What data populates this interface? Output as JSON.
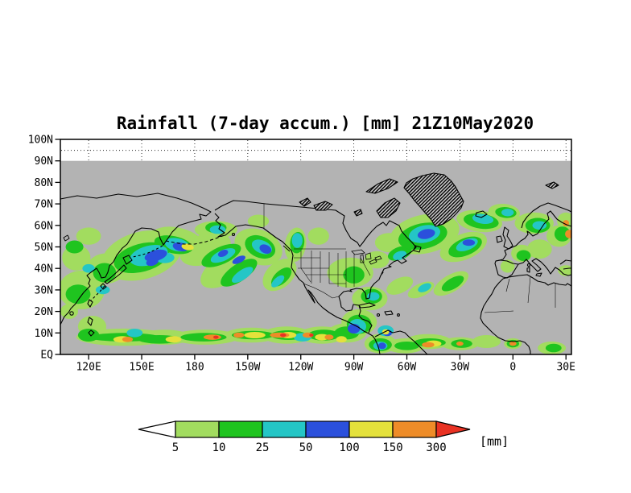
{
  "chart_data": {
    "type": "heatmap",
    "title": "Rainfall (7-day accum.) [mm] 21Z10May2020",
    "variable": "Rainfall (7-day accumulation)",
    "units": "mm",
    "valid_time": "21Z10May2020",
    "projection": "latlon",
    "map_background_color": "#b3b3b3",
    "axes": {
      "lat_ticks": [
        {
          "value": 100,
          "label": "100N"
        },
        {
          "value": 90,
          "label": "90N"
        },
        {
          "value": 80,
          "label": "80N"
        },
        {
          "value": 70,
          "label": "70N"
        },
        {
          "value": 60,
          "label": "60N"
        },
        {
          "value": 50,
          "label": "50N"
        },
        {
          "value": 40,
          "label": "40N"
        },
        {
          "value": 30,
          "label": "30N"
        },
        {
          "value": 20,
          "label": "20N"
        },
        {
          "value": 10,
          "label": "10N"
        },
        {
          "value": 0,
          "label": "EQ"
        }
      ],
      "lon_ticks": [
        {
          "value": 120,
          "label": "120E"
        },
        {
          "value": 150,
          "label": "150E"
        },
        {
          "value": 180,
          "label": "180"
        },
        {
          "value": 210,
          "label": "150W"
        },
        {
          "value": 240,
          "label": "120W"
        },
        {
          "value": 270,
          "label": "90W"
        },
        {
          "value": 300,
          "label": "60W"
        },
        {
          "value": 330,
          "label": "30W"
        },
        {
          "value": 360,
          "label": "0"
        },
        {
          "value": 390,
          "label": "30E"
        }
      ]
    },
    "colorbar": {
      "levels": [
        "5",
        "10",
        "25",
        "50",
        "100",
        "150",
        "300"
      ],
      "unit_label": "[mm]",
      "segments": [
        {
          "range": "<5",
          "color": "#ffffff"
        },
        {
          "range": "5-10",
          "color": "#a2dc5f"
        },
        {
          "range": "10-25",
          "color": "#1fc41f"
        },
        {
          "range": "25-50",
          "color": "#24c6c6"
        },
        {
          "range": "50-100",
          "color": "#2b50dc"
        },
        {
          "range": "100-150",
          "color": "#e4e13b"
        },
        {
          "range": "150-300",
          "color": "#ee8c28"
        },
        {
          "range": ">300",
          "color": "#e93223"
        }
      ]
    },
    "palette": {
      "a": "#a2dc5f",
      "g": "#1fc41f",
      "c": "#24c6c6",
      "b": "#2b50dc",
      "y": "#e4e13b",
      "o": "#ee8c28",
      "r": "#e93223"
    },
    "rain_patch_format": [
      "lon_deg_east_0_360_continuous",
      "lat_deg_north",
      "width_deg",
      "height_deg",
      "rotation_deg",
      "intensity_key"
    ],
    "rain_patches": [
      [
        116,
        30,
        26,
        18,
        0,
        "a"
      ],
      [
        113,
        45,
        16,
        12,
        0,
        "a"
      ],
      [
        130,
        40,
        22,
        14,
        0,
        "a"
      ],
      [
        150,
        46,
        46,
        22,
        -15,
        "a"
      ],
      [
        170,
        53,
        30,
        12,
        12,
        "a"
      ],
      [
        186,
        49,
        30,
        14,
        -20,
        "a"
      ],
      [
        200,
        41,
        38,
        14,
        -32,
        "a"
      ],
      [
        216,
        50,
        28,
        16,
        22,
        "a"
      ],
      [
        228,
        37,
        22,
        12,
        -42,
        "a"
      ],
      [
        237,
        51,
        12,
        16,
        8,
        "a"
      ],
      [
        216,
        62,
        12,
        6,
        0,
        "a"
      ],
      [
        192,
        58,
        24,
        8,
        0,
        "a"
      ],
      [
        140,
        8,
        54,
        8,
        0,
        "a"
      ],
      [
        122,
        13,
        16,
        10,
        0,
        "a"
      ],
      [
        163,
        8,
        30,
        7,
        0,
        "a"
      ],
      [
        186,
        8,
        38,
        7,
        0,
        "a"
      ],
      [
        212,
        9,
        30,
        7,
        0,
        "a"
      ],
      [
        232,
        9,
        28,
        8,
        0,
        "a"
      ],
      [
        252,
        9,
        26,
        8,
        0,
        "a"
      ],
      [
        266,
        10,
        22,
        9,
        0,
        "a"
      ],
      [
        273,
        15,
        20,
        12,
        0,
        "a"
      ],
      [
        285,
        5,
        18,
        9,
        0,
        "a"
      ],
      [
        299,
        4,
        22,
        7,
        0,
        "a"
      ],
      [
        312,
        6,
        26,
        7,
        0,
        "a"
      ],
      [
        330,
        5,
        22,
        6,
        0,
        "a"
      ],
      [
        345,
        6,
        16,
        6,
        0,
        "a"
      ],
      [
        360,
        5,
        10,
        5,
        0,
        "a"
      ],
      [
        382,
        3,
        16,
        6,
        0,
        "a"
      ],
      [
        279,
        26,
        20,
        11,
        0,
        "a"
      ],
      [
        268,
        38,
        26,
        14,
        0,
        "a"
      ],
      [
        283,
        44,
        14,
        8,
        0,
        "a"
      ],
      [
        290,
        52,
        16,
        9,
        0,
        "a"
      ],
      [
        250,
        55,
        12,
        8,
        0,
        "a"
      ],
      [
        296,
        32,
        16,
        7,
        -25,
        "a"
      ],
      [
        308,
        30,
        16,
        6,
        -25,
        "a"
      ],
      [
        325,
        33,
        22,
        8,
        -30,
        "a"
      ],
      [
        310,
        56,
        40,
        18,
        -12,
        "a"
      ],
      [
        332,
        50,
        28,
        12,
        -22,
        "a"
      ],
      [
        341,
        62,
        26,
        10,
        8,
        "a"
      ],
      [
        355,
        66,
        18,
        8,
        5,
        "a"
      ],
      [
        372,
        61,
        22,
        10,
        0,
        "a"
      ],
      [
        386,
        55,
        14,
        10,
        0,
        "a"
      ],
      [
        390,
        62,
        10,
        8,
        0,
        "a"
      ],
      [
        365,
        47,
        12,
        8,
        0,
        "a"
      ],
      [
        357,
        41,
        8,
        6,
        0,
        "a"
      ],
      [
        375,
        49,
        14,
        9,
        0,
        "a"
      ],
      [
        390,
        39,
        9,
        5,
        0,
        "a"
      ],
      [
        120,
        55,
        14,
        8,
        0,
        "a"
      ],
      [
        109,
        20,
        10,
        7,
        0,
        "a"
      ],
      [
        114,
        28,
        14,
        9,
        0,
        "g"
      ],
      [
        129,
        38,
        13,
        9,
        0,
        "g"
      ],
      [
        150,
        45,
        32,
        13,
        -15,
        "g"
      ],
      [
        168,
        51,
        22,
        8,
        12,
        "g"
      ],
      [
        195,
        46,
        24,
        8,
        -24,
        "g"
      ],
      [
        205,
        38,
        24,
        8,
        -34,
        "g"
      ],
      [
        217,
        50,
        18,
        10,
        24,
        "g"
      ],
      [
        229,
        36,
        14,
        6,
        -42,
        "g"
      ],
      [
        238,
        52,
        8,
        10,
        8,
        "g"
      ],
      [
        140,
        8,
        40,
        4,
        0,
        "g"
      ],
      [
        160,
        7,
        24,
        4,
        0,
        "g"
      ],
      [
        185,
        8,
        26,
        4,
        0,
        "g"
      ],
      [
        213,
        9,
        24,
        4,
        0,
        "g"
      ],
      [
        233,
        9,
        20,
        4.5,
        0,
        "g"
      ],
      [
        253,
        9,
        18,
        5,
        0,
        "g"
      ],
      [
        266,
        10,
        14,
        6,
        0,
        "g"
      ],
      [
        273,
        14,
        14,
        9,
        0,
        "g"
      ],
      [
        285,
        4.5,
        13,
        6,
        0,
        "g"
      ],
      [
        300,
        4,
        14,
        4,
        0,
        "g"
      ],
      [
        313,
        5.5,
        18,
        4,
        0,
        "g"
      ],
      [
        331,
        5,
        12,
        4,
        0,
        "g"
      ],
      [
        360,
        5,
        7,
        3.5,
        0,
        "g"
      ],
      [
        383,
        3,
        9,
        4,
        0,
        "g"
      ],
      [
        280,
        27,
        12,
        7,
        0,
        "g"
      ],
      [
        270,
        37,
        12,
        8,
        0,
        "g"
      ],
      [
        296,
        47,
        14,
        6,
        -20,
        "g"
      ],
      [
        309,
        55,
        28,
        12,
        -12,
        "g"
      ],
      [
        333,
        50,
        20,
        8,
        -22,
        "g"
      ],
      [
        342,
        62,
        20,
        7,
        8,
        "g"
      ],
      [
        356,
        66,
        12,
        5,
        5,
        "g"
      ],
      [
        374,
        60,
        14,
        7,
        0,
        "g"
      ],
      [
        388,
        56,
        9,
        7,
        0,
        "g"
      ],
      [
        366,
        46,
        8,
        5,
        0,
        "g"
      ],
      [
        120,
        9,
        12,
        6,
        0,
        "g"
      ],
      [
        112,
        50,
        10,
        6,
        0,
        "g"
      ],
      [
        192,
        59,
        12,
        5,
        0,
        "g"
      ],
      [
        326,
        33,
        14,
        5,
        -30,
        "g"
      ],
      [
        154,
        46,
        22,
        9,
        -15,
        "c"
      ],
      [
        170,
        51,
        14,
        6,
        12,
        "c"
      ],
      [
        196,
        46,
        15,
        5,
        -24,
        "c"
      ],
      [
        207,
        37,
        14,
        4.5,
        -34,
        "c"
      ],
      [
        218,
        50,
        12,
        6,
        24,
        "c"
      ],
      [
        238,
        53,
        6,
        7,
        0,
        "c"
      ],
      [
        272,
        13,
        10,
        7,
        0,
        "c"
      ],
      [
        288,
        11,
        9,
        5,
        0,
        "c"
      ],
      [
        285,
        4,
        8,
        4,
        0,
        "c"
      ],
      [
        310,
        56,
        18,
        8,
        -12,
        "c"
      ],
      [
        334,
        51,
        13,
        5,
        -22,
        "c"
      ],
      [
        343,
        63,
        12,
        4.5,
        8,
        "c"
      ],
      [
        357,
        66,
        7,
        3.5,
        0,
        "c"
      ],
      [
        375,
        60,
        8,
        4,
        0,
        "c"
      ],
      [
        128,
        30,
        8,
        4,
        0,
        "c"
      ],
      [
        146,
        10,
        9,
        4,
        0,
        "c"
      ],
      [
        241,
        8,
        10,
        4,
        0,
        "c"
      ],
      [
        281,
        27,
        7,
        4,
        0,
        "c"
      ],
      [
        227,
        34,
        9,
        3.5,
        -42,
        "c"
      ],
      [
        163,
        45,
        11,
        5,
        0,
        "c"
      ],
      [
        193,
        58,
        9,
        4,
        0,
        "c"
      ],
      [
        296,
        46,
        8,
        4,
        -20,
        "c"
      ],
      [
        310,
        31,
        8,
        3.5,
        -25,
        "c"
      ],
      [
        120,
        40,
        7,
        4,
        0,
        "c"
      ],
      [
        158,
        46,
        13,
        5,
        -15,
        "b"
      ],
      [
        172,
        50,
        9,
        4,
        12,
        "b"
      ],
      [
        270,
        12,
        7,
        4.5,
        0,
        "b"
      ],
      [
        289,
        10,
        5,
        3,
        0,
        "b"
      ],
      [
        311,
        56,
        10,
        4.5,
        -12,
        "b"
      ],
      [
        205,
        44,
        8,
        3,
        -26,
        "b"
      ],
      [
        286,
        4,
        4.5,
        3,
        0,
        "b"
      ],
      [
        335,
        52,
        7,
        3,
        0,
        "b"
      ],
      [
        220,
        49,
        7,
        4,
        24,
        "b"
      ],
      [
        156,
        43,
        7,
        3.5,
        -15,
        "b"
      ],
      [
        196,
        47,
        6,
        3,
        -24,
        "b"
      ],
      [
        139,
        7,
        10,
        3,
        0,
        "y"
      ],
      [
        168,
        7,
        9,
        3,
        0,
        "y"
      ],
      [
        214,
        9,
        12,
        3,
        0,
        "y"
      ],
      [
        233,
        9,
        9,
        3,
        0,
        "y"
      ],
      [
        252,
        8,
        8,
        3,
        0,
        "y"
      ],
      [
        315,
        5,
        9,
        3,
        0,
        "y"
      ],
      [
        176,
        50,
        7,
        3,
        10,
        "y"
      ],
      [
        263,
        7,
        6,
        3,
        0,
        "y"
      ],
      [
        288,
        10.5,
        4,
        2.5,
        0,
        "y"
      ],
      [
        142,
        7,
        6,
        2.5,
        0,
        "o"
      ],
      [
        190,
        8,
        10,
        2.5,
        0,
        "o"
      ],
      [
        228,
        9,
        11,
        2.5,
        0,
        "o"
      ],
      [
        244,
        9,
        6,
        2.5,
        0,
        "o"
      ],
      [
        256,
        8,
        5,
        2.5,
        0,
        "o"
      ],
      [
        312,
        4.5,
        7,
        2.5,
        0,
        "o"
      ],
      [
        330,
        5,
        4,
        2,
        0,
        "o"
      ],
      [
        392,
        56,
        5,
        4,
        0,
        "o"
      ],
      [
        390,
        61,
        3.5,
        3,
        0,
        "o"
      ],
      [
        205,
        9,
        6,
        2.5,
        0,
        "o"
      ],
      [
        360,
        5,
        4,
        2,
        0,
        "o"
      ],
      [
        230,
        9,
        3.5,
        1.6,
        0,
        "r"
      ],
      [
        192,
        8,
        3,
        1.5,
        0,
        "r"
      ],
      [
        246,
        9,
        2.5,
        1.4,
        0,
        "r"
      ]
    ]
  }
}
